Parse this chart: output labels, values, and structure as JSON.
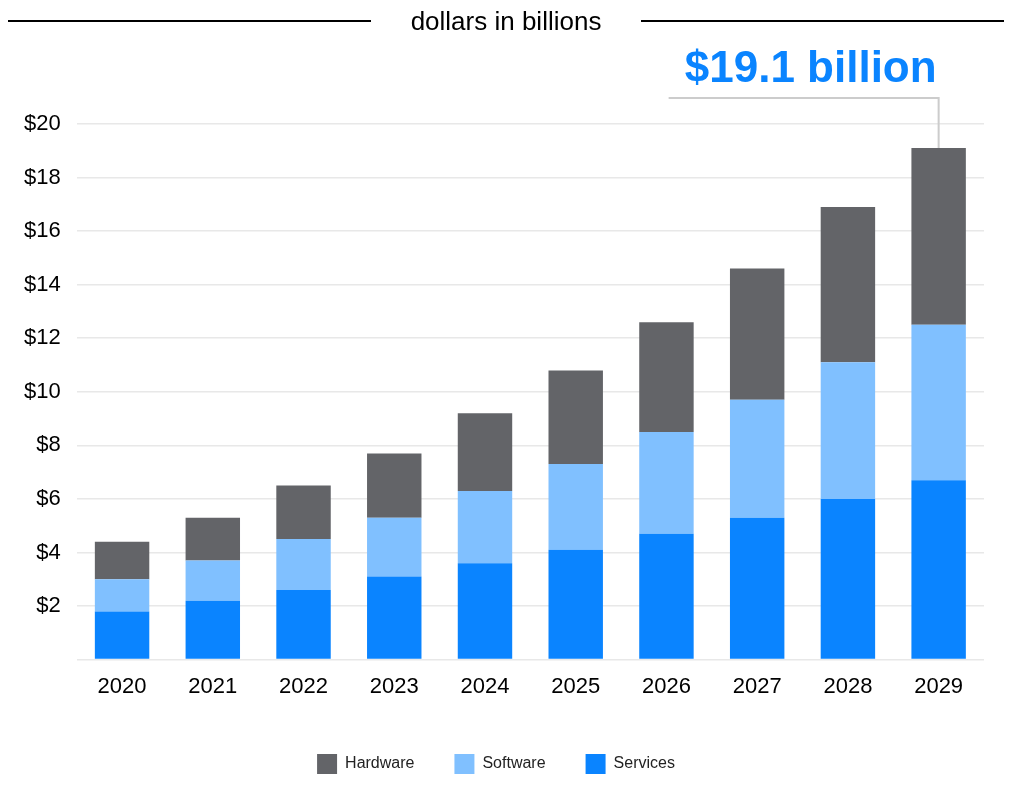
{
  "chart_data": {
    "type": "bar",
    "title": "dollars in billions",
    "stacked": true,
    "categories": [
      "2020",
      "2021",
      "2022",
      "2023",
      "2024",
      "2025",
      "2026",
      "2027",
      "2028",
      "2029"
    ],
    "series": [
      {
        "name": "Services",
        "color": "#0a84ff",
        "values": [
          1.8,
          2.2,
          2.6,
          3.1,
          3.6,
          4.1,
          4.7,
          5.3,
          6.0,
          6.7
        ]
      },
      {
        "name": "Software",
        "color": "#80c0ff",
        "values": [
          1.2,
          1.5,
          1.9,
          2.2,
          2.7,
          3.2,
          3.8,
          4.4,
          5.1,
          5.8
        ]
      },
      {
        "name": "Hardware",
        "color": "#636468",
        "values": [
          1.4,
          1.6,
          2.0,
          2.4,
          2.9,
          3.5,
          4.1,
          4.9,
          5.8,
          6.6
        ]
      }
    ],
    "ylim": [
      0,
      20
    ],
    "yticks": [
      {
        "value": 0,
        "label": null
      },
      {
        "value": 2,
        "label": "$2"
      },
      {
        "value": 4,
        "label": "$4"
      },
      {
        "value": 6,
        "label": "$6"
      },
      {
        "value": 8,
        "label": "$8"
      },
      {
        "value": 10,
        "label": "$10"
      },
      {
        "value": 12,
        "label": "$12"
      },
      {
        "value": 14,
        "label": "$14"
      },
      {
        "value": 16,
        "label": "$16"
      },
      {
        "value": 18,
        "label": "$18"
      },
      {
        "value": 20,
        "label": "$20"
      }
    ],
    "grid": "y",
    "legend": "bottom",
    "annotations": [
      {
        "text": "$19.1 billion",
        "x": "2029",
        "y": 19.1
      }
    ]
  }
}
